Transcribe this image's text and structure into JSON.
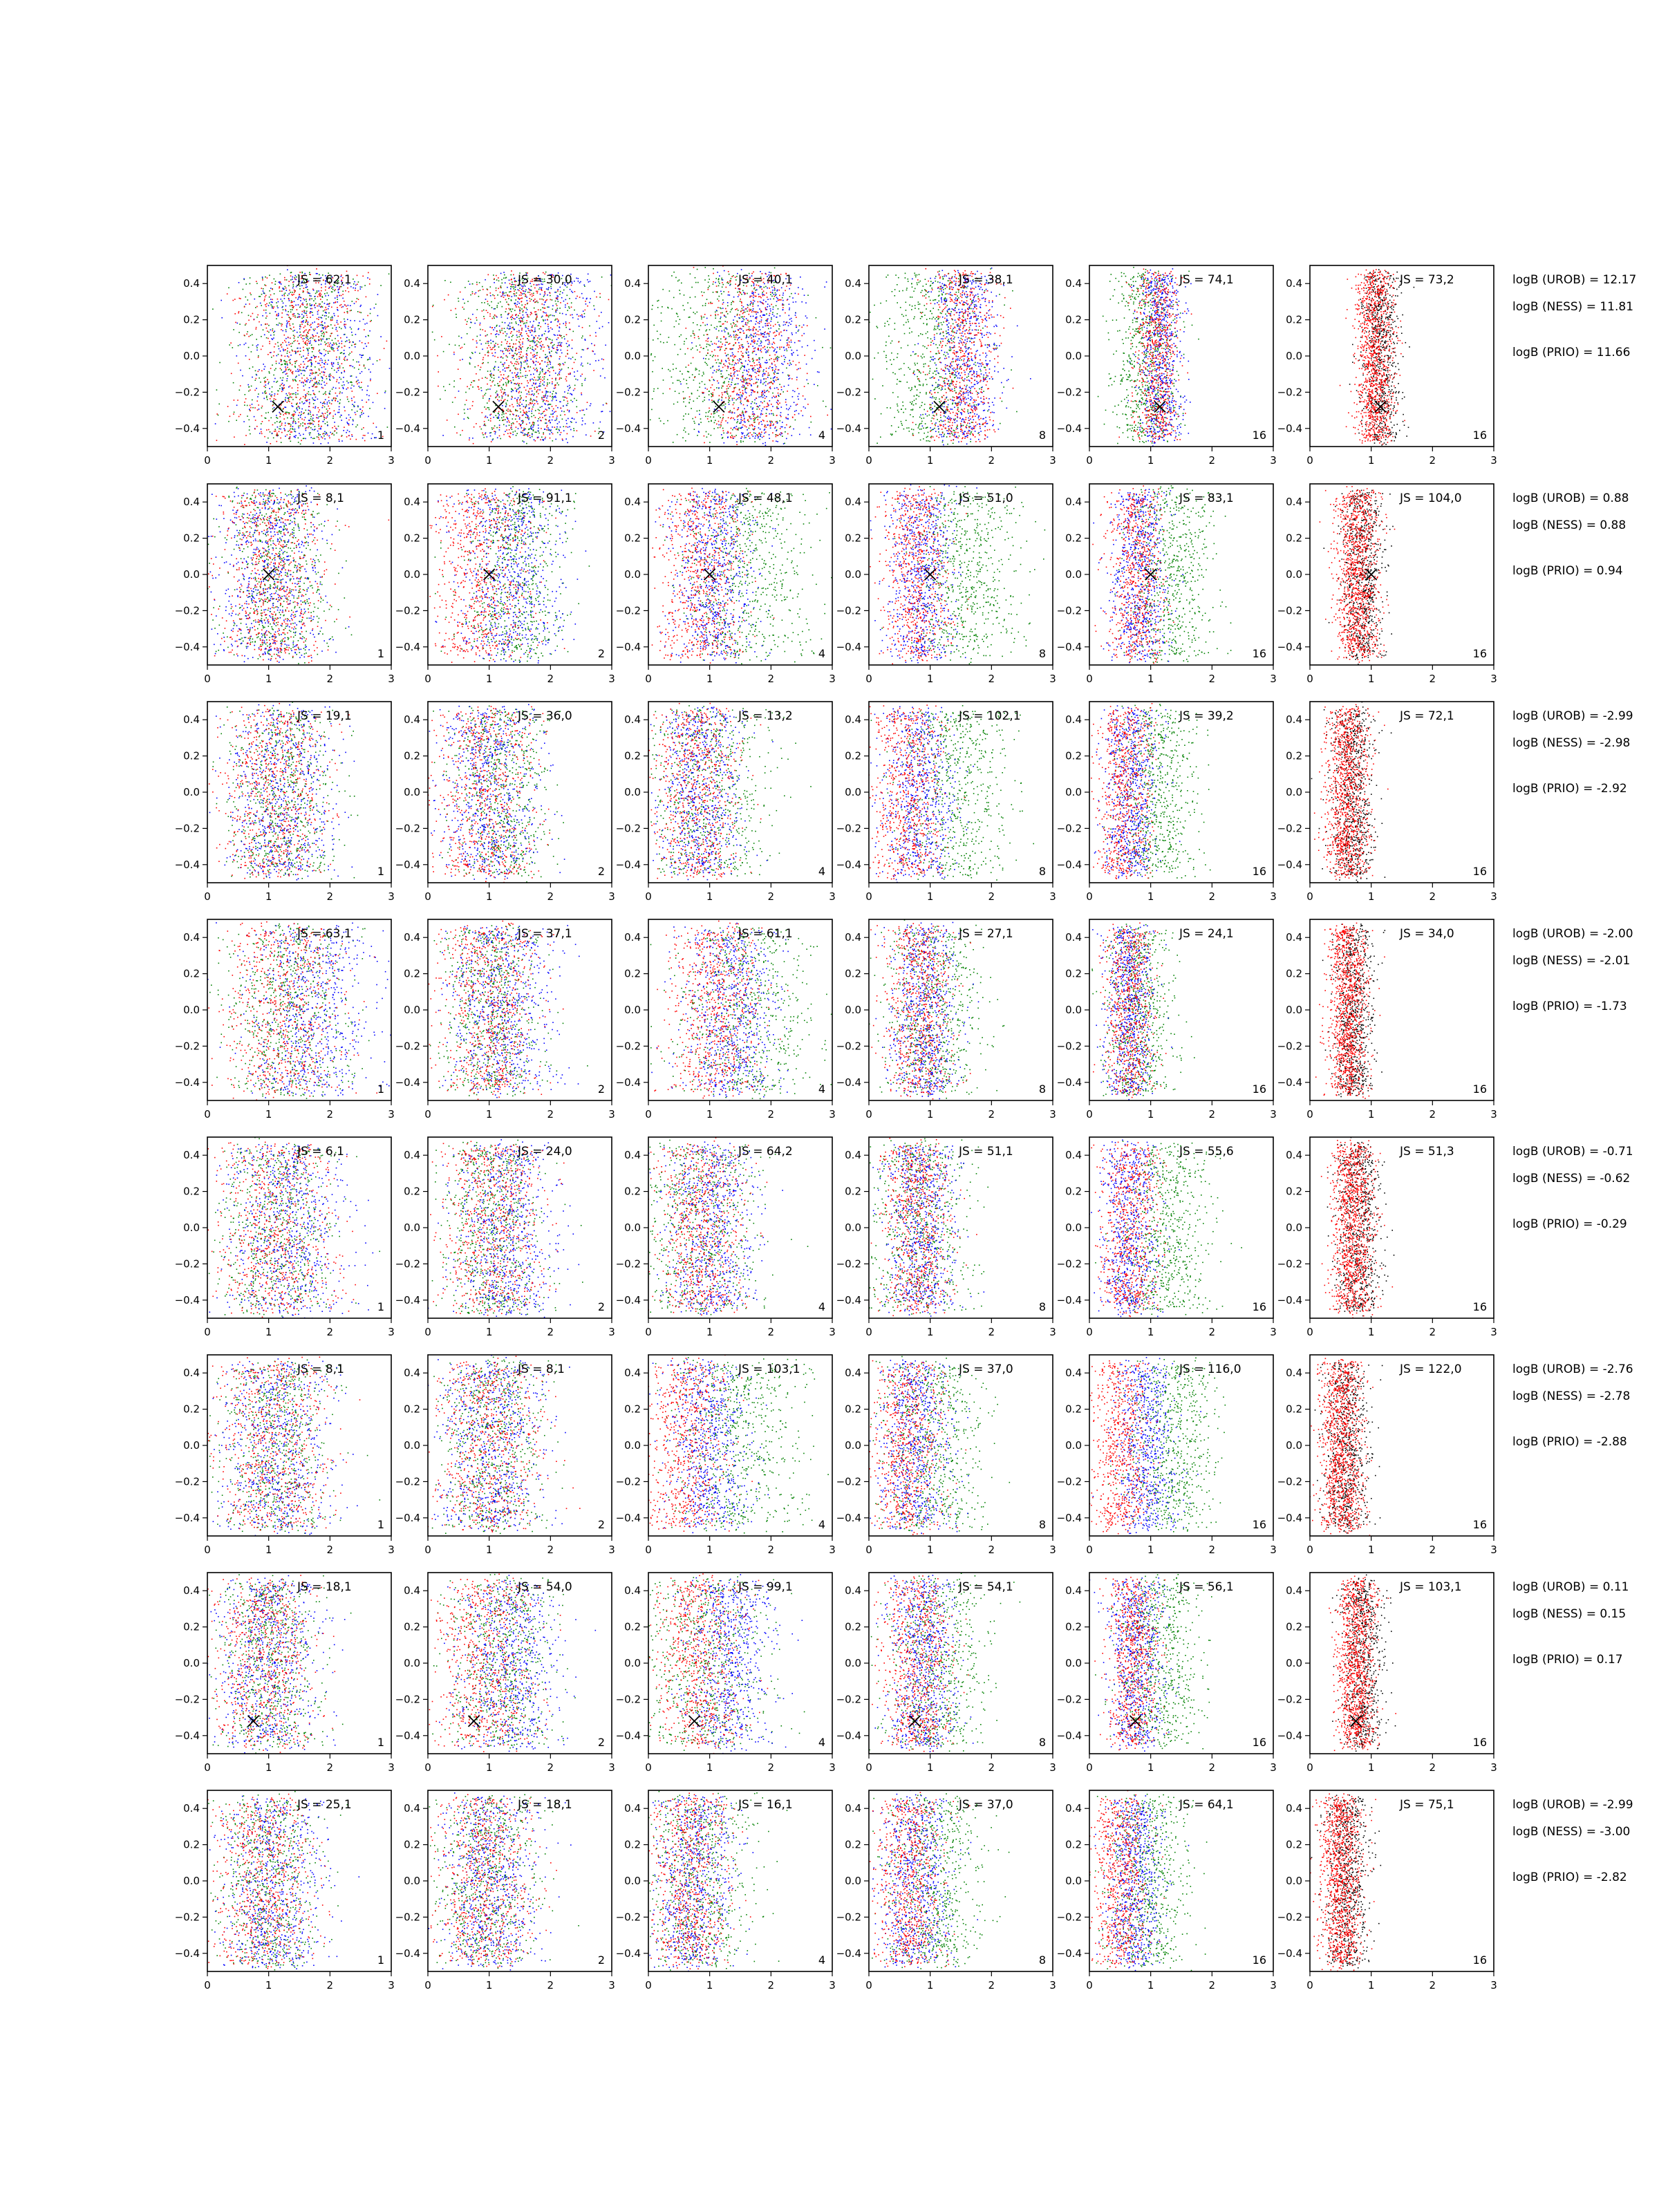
{
  "chart_data": {
    "type": "scatter",
    "layout": "grid of 8 rows x 6 columns",
    "xlim": [
      0,
      3
    ],
    "ylim": [
      -0.5,
      0.5
    ],
    "xticks": [
      "0",
      "1",
      "2",
      "3"
    ],
    "yticks": [
      "0.4",
      "0.2",
      "0.0",
      "−0.2",
      "−0.4"
    ],
    "colors": {
      "red": "#ff0000",
      "green": "#008000",
      "blue": "#0000ff",
      "black": "#000000"
    },
    "column_steps": [
      "1",
      "2",
      "4",
      "8",
      "16",
      "16"
    ],
    "rows": [
      {
        "marker": [
          1.15,
          -0.28
        ],
        "js": [
          "JS = 62,1",
          "JS = 30,0",
          "JS = 40,1",
          "JS = 38,1",
          "JS = 74,1",
          "JS = 73,2"
        ],
        "logb": [
          "logB (UROB) = 12.17",
          "logB (NESS) = 11.81",
          "logB (PRIO) = 11.66"
        ],
        "centers": {
          "red": [
            1.55,
            1.55,
            1.65,
            1.5,
            1.1,
            1.05
          ],
          "green": [
            1.55,
            1.5,
            1.2,
            1.05,
            0.9,
            1.05
          ],
          "blue": [
            1.75,
            1.8,
            1.85,
            1.55,
            1.15,
            1.05
          ]
        },
        "spread": [
          0.55,
          0.5,
          0.4,
          0.28,
          0.18,
          0.16
        ]
      },
      {
        "marker": [
          1.0,
          0.0
        ],
        "js": [
          "JS = 8,1",
          "JS = 91,1",
          "JS = 48,1",
          "JS = 51,0",
          "JS = 83,1",
          "JS = 104,0"
        ],
        "logb": [
          "logB (UROB) = 0.88",
          "logB (NESS) = 0.88",
          "logB (PRIO) = 0.94"
        ],
        "centers": {
          "red": [
            1.05,
            0.85,
            0.85,
            0.75,
            0.75,
            0.75
          ],
          "green": [
            1.1,
            1.4,
            1.6,
            1.6,
            1.3,
            1.0
          ],
          "blue": [
            1.05,
            1.3,
            1.05,
            0.85,
            0.8,
            0.95
          ]
        },
        "spread": [
          0.45,
          0.42,
          0.35,
          0.28,
          0.22,
          0.18
        ]
      },
      {
        "marker": null,
        "js": [
          "JS = 19,1",
          "JS = 36,0",
          "JS = 13,2",
          "JS = 102,1",
          "JS = 39,2",
          "JS = 72,1"
        ],
        "logb": [
          "logB (UROB) = -2.99",
          "logB (NESS) = -2.98",
          "logB (PRIO) = -2.92"
        ],
        "centers": {
          "red": [
            1.1,
            0.9,
            0.75,
            0.6,
            0.55,
            0.6
          ],
          "green": [
            1.2,
            1.15,
            1.0,
            1.4,
            1.1,
            0.8
          ],
          "blue": [
            1.2,
            1.0,
            0.85,
            0.8,
            0.65,
            0.7
          ]
        },
        "spread": [
          0.45,
          0.4,
          0.35,
          0.3,
          0.22,
          0.18
        ]
      },
      {
        "marker": null,
        "js": [
          "JS = 63,1",
          "JS = 37,1",
          "JS = 61,1",
          "JS = 27,1",
          "JS = 24,1",
          "JS = 34,0"
        ],
        "logb": [
          "logB (UROB) = -2.00",
          "logB (NESS) = -2.01",
          "logB (PRIO) = -1.73"
        ],
        "centers": {
          "red": [
            1.2,
            1.0,
            1.05,
            0.8,
            0.65,
            0.6
          ],
          "green": [
            1.3,
            1.05,
            1.6,
            1.0,
            0.8,
            0.65
          ],
          "blue": [
            1.7,
            1.2,
            1.3,
            0.9,
            0.65,
            0.65
          ]
        },
        "spread": [
          0.5,
          0.42,
          0.38,
          0.28,
          0.2,
          0.16
        ]
      },
      {
        "marker": null,
        "js": [
          "JS = 6,1",
          "JS = 24,0",
          "JS = 64,2",
          "JS = 51,1",
          "JS = 55,6",
          "JS = 51,3"
        ],
        "logb": [
          "logB (UROB) = -0.71",
          "logB (NESS) = -0.62",
          "logB (PRIO) = -0.29"
        ],
        "centers": {
          "red": [
            1.1,
            1.05,
            0.85,
            0.75,
            0.65,
            0.7
          ],
          "green": [
            1.15,
            1.05,
            0.8,
            0.8,
            1.25,
            0.65
          ],
          "blue": [
            1.3,
            1.25,
            1.0,
            0.85,
            0.65,
            0.65
          ]
        },
        "spread": [
          0.48,
          0.42,
          0.36,
          0.28,
          0.24,
          0.18
        ]
      },
      {
        "marker": null,
        "js": [
          "JS = 8,1",
          "JS = 8,1",
          "JS = 103,1",
          "JS = 37,0",
          "JS = 116,0",
          "JS = 122,0"
        ],
        "logb": [
          "logB (UROB) = -2.76",
          "logB (NESS) = -2.78",
          "logB (PRIO) = -2.88"
        ],
        "centers": {
          "red": [
            1.05,
            1.0,
            0.6,
            0.6,
            0.5,
            0.5
          ],
          "green": [
            1.1,
            1.05,
            1.5,
            1.0,
            1.35,
            0.8
          ],
          "blue": [
            1.1,
            1.05,
            0.95,
            0.75,
            0.9,
            0.7
          ]
        },
        "spread": [
          0.45,
          0.42,
          0.35,
          0.3,
          0.24,
          0.18
        ]
      },
      {
        "marker": [
          0.75,
          -0.32
        ],
        "js": [
          "JS = 18,1",
          "JS = 54,0",
          "JS = 99,1",
          "JS = 54,1",
          "JS = 56,1",
          "JS = 103,1"
        ],
        "logb": [
          "logB (UROB) = 0.11",
          "logB (NESS) = 0.15",
          "logB (PRIO) = 0.17"
        ],
        "centers": {
          "red": [
            0.9,
            0.95,
            0.8,
            0.8,
            0.7,
            0.75
          ],
          "green": [
            1.0,
            1.2,
            0.9,
            1.1,
            1.15,
            0.75
          ],
          "blue": [
            1.0,
            1.3,
            1.3,
            0.85,
            0.75,
            0.8
          ]
        },
        "spread": [
          0.42,
          0.42,
          0.36,
          0.28,
          0.22,
          0.16
        ]
      },
      {
        "marker": null,
        "js": [
          "JS = 25,1",
          "JS = 18,1",
          "JS = 16,1",
          "JS = 37,0",
          "JS = 64,1",
          "JS = 75,1"
        ],
        "logb": [
          "logB (UROB) = -2.99",
          "logB (NESS) = -3.00",
          "logB (PRIO) = -2.82"
        ],
        "centers": {
          "red": [
            0.9,
            0.9,
            0.7,
            0.65,
            0.5,
            0.5
          ],
          "green": [
            0.95,
            0.95,
            0.8,
            1.05,
            0.95,
            0.7
          ],
          "blue": [
            1.05,
            1.0,
            0.75,
            0.75,
            0.7,
            0.65
          ]
        },
        "spread": [
          0.42,
          0.4,
          0.32,
          0.28,
          0.22,
          0.17
        ]
      }
    ]
  }
}
